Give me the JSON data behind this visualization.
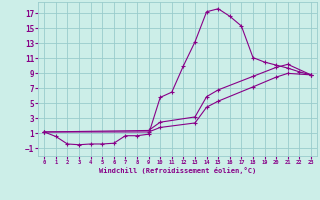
{
  "xlabel": "Windchill (Refroidissement éolien,°C)",
  "xlim": [
    -0.5,
    23.5
  ],
  "ylim": [
    -2.0,
    18.5
  ],
  "xticks": [
    0,
    1,
    2,
    3,
    4,
    5,
    6,
    7,
    8,
    9,
    10,
    11,
    12,
    13,
    14,
    15,
    16,
    17,
    18,
    19,
    20,
    21,
    22,
    23
  ],
  "yticks": [
    -1,
    1,
    3,
    5,
    7,
    9,
    11,
    13,
    15,
    17
  ],
  "bg_color": "#cceee8",
  "grid_color": "#99cccc",
  "line_color": "#880088",
  "series1_x": [
    0,
    1,
    2,
    3,
    4,
    5,
    6,
    7,
    8,
    9,
    10,
    11,
    12,
    13,
    14,
    15,
    16,
    17,
    18,
    19,
    20,
    21,
    22,
    23
  ],
  "series1_y": [
    1.2,
    0.6,
    -0.4,
    -0.5,
    -0.4,
    -0.4,
    -0.3,
    0.7,
    0.7,
    0.9,
    5.8,
    6.5,
    10.0,
    13.2,
    17.2,
    17.6,
    16.6,
    15.3,
    11.1,
    10.5,
    10.1,
    9.7,
    9.2,
    8.8
  ],
  "series2_x": [
    0,
    9,
    10,
    13,
    14,
    15,
    18,
    20,
    21,
    23
  ],
  "series2_y": [
    1.2,
    1.4,
    2.5,
    3.2,
    5.9,
    6.8,
    8.6,
    9.8,
    10.2,
    8.8
  ],
  "series3_x": [
    0,
    9,
    10,
    13,
    14,
    15,
    18,
    20,
    21,
    23
  ],
  "series3_y": [
    1.2,
    1.2,
    1.8,
    2.4,
    4.5,
    5.3,
    7.2,
    8.5,
    9.0,
    8.8
  ]
}
